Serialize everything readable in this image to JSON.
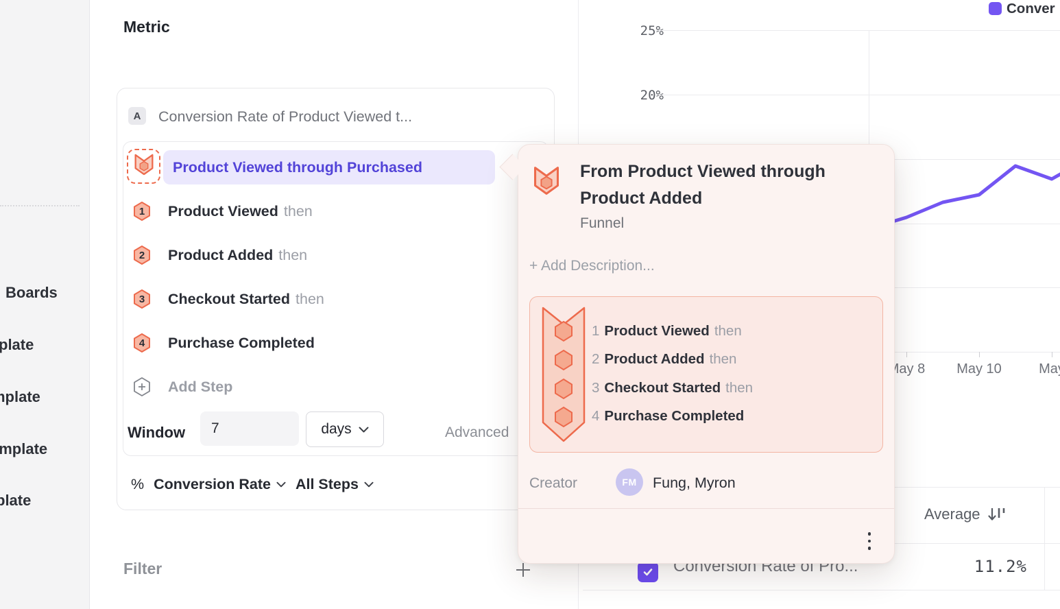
{
  "colors": {
    "accent_purple": "#7355f2",
    "metric_text_purple": "#5243d8",
    "coral": "#ed6a4c",
    "popover_bg": "#fcf3f1",
    "checkbox_purple": "#6b4bf2"
  },
  "sidebar": {
    "items": [
      {
        "label": "Boards"
      },
      {
        "label": "plate"
      },
      {
        "label": "mplate"
      },
      {
        "label": "emplate"
      },
      {
        "label": "plate"
      }
    ]
  },
  "metric_panel": {
    "heading": "Metric",
    "series_badge": "A",
    "series_title": "Conversion Rate of Product Viewed t...",
    "selected_metric": "Product Viewed through Purchased",
    "steps": [
      {
        "num": "1",
        "name": "Product Viewed",
        "then": "then"
      },
      {
        "num": "2",
        "name": "Product Added",
        "then": "then"
      },
      {
        "num": "3",
        "name": "Checkout Started",
        "then": "then"
      },
      {
        "num": "4",
        "name": "Purchase Completed",
        "then": ""
      }
    ],
    "add_step_label": "Add Step",
    "window_label": "Window",
    "window_value": "7",
    "window_unit": "days",
    "advanced_label": "Advanced",
    "measure_prefix": "%",
    "measure_label": "Conversion Rate",
    "steps_scope_label": "All Steps",
    "filter_label": "Filter"
  },
  "popover": {
    "title": "From Product Viewed through Product Added",
    "type_label": "Funnel",
    "add_description_label": "+ Add Description...",
    "steps": [
      {
        "num": "1",
        "name": "Product Viewed",
        "then": "then"
      },
      {
        "num": "2",
        "name": "Product Added",
        "then": "then"
      },
      {
        "num": "3",
        "name": "Checkout Started",
        "then": "then"
      },
      {
        "num": "4",
        "name": "Purchase Completed",
        "then": ""
      }
    ],
    "creator_label": "Creator",
    "creator_initials": "FM",
    "creator_name": "Fung, Myron"
  },
  "chart": {
    "legend_label": "Conver",
    "y_ticks": [
      "25%",
      "20%"
    ],
    "x_ticks": [
      "May 8",
      "May 10",
      "May"
    ]
  },
  "table": {
    "average_header": "Average",
    "row_label": "Conversion Rate of Pro...",
    "row_value": "11.2%"
  },
  "chart_data": {
    "type": "line",
    "title": "",
    "series_label_visible": "Conver",
    "series_color": "#7355f2",
    "legend_position": "top-right",
    "grid": true,
    "x_tick_labels_visible": [
      "May 8",
      "May 10",
      "May"
    ],
    "y_tick_labels_visible": [
      "25%",
      "20%"
    ],
    "y_gridlines_pct": [
      25,
      20,
      15,
      10,
      5,
      0
    ],
    "ylim_pct": [
      0,
      27
    ],
    "points": [
      {
        "x": "May 8",
        "y_pct": 10.4
      },
      {
        "x": "May 9",
        "y_pct": 11.6
      },
      {
        "x": "May 10",
        "y_pct": 12.2
      },
      {
        "x": "May 11",
        "y_pct": 14.4
      },
      {
        "x": "May 12",
        "y_pct": 13.4
      }
    ],
    "edge_extrapolation": {
      "left_y_pct": 9.6,
      "right_y_pct": 15.0
    },
    "note": "left portion of series hidden behind popover; line partially clipped at right viewport edge",
    "summary_table": {
      "column": "Average",
      "row": "Conversion Rate of Pro...",
      "value_pct": 11.2
    }
  }
}
